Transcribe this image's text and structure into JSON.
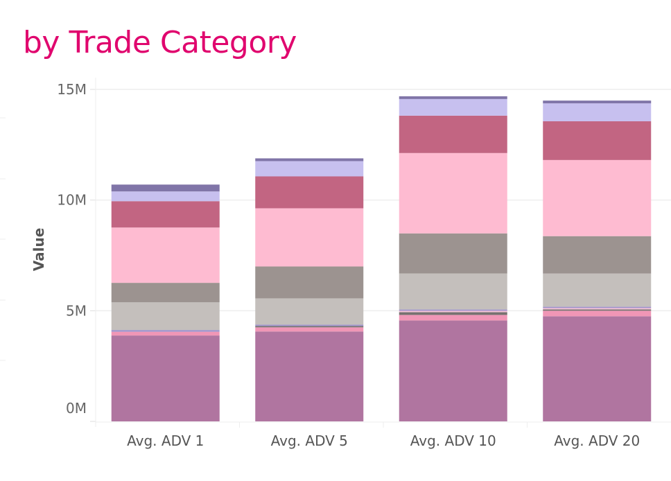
{
  "title": "by Trade Category",
  "chart_data": {
    "type": "bar",
    "stacked": true,
    "title": "by Trade Category",
    "xlabel": "",
    "ylabel": "Value",
    "ylim": [
      0,
      15000000
    ],
    "yticks": [
      {
        "value": 0,
        "label": "0M"
      },
      {
        "value": 5000000,
        "label": "5M"
      },
      {
        "value": 10000000,
        "label": "10M"
      },
      {
        "value": 15000000,
        "label": "15M"
      }
    ],
    "grid": true,
    "categories": [
      "Avg. ADV 1",
      "Avg. ADV 5",
      "Avg. ADV 10",
      "Avg. ADV 20"
    ],
    "series": [
      {
        "color": "#b075a0",
        "values": [
          3880000,
          4060000,
          4560000,
          4750000
        ]
      },
      {
        "color": "#f096b6",
        "values": [
          170000,
          190000,
          250000,
          250000
        ]
      },
      {
        "color": "#767270",
        "values": [
          0,
          60000,
          125000,
          60000
        ]
      },
      {
        "color": "#f6c3d6",
        "values": [
          0,
          0,
          60000,
          60000
        ]
      },
      {
        "color": "#a095cc",
        "values": [
          80000,
          60000,
          60000,
          60000
        ]
      },
      {
        "color": "#c4bfbc",
        "values": [
          1250000,
          1190000,
          1630000,
          1500000
        ]
      },
      {
        "color": "#9c9390",
        "values": [
          880000,
          1440000,
          1810000,
          1690000
        ]
      },
      {
        "color": "#febbd1",
        "values": [
          2500000,
          2630000,
          3630000,
          3440000
        ]
      },
      {
        "color": "#c26582",
        "values": [
          1190000,
          1440000,
          1690000,
          1750000
        ]
      },
      {
        "color": "#c7c0ef",
        "values": [
          440000,
          690000,
          750000,
          810000
        ]
      },
      {
        "color": "#8075a8",
        "values": [
          310000,
          125000,
          125000,
          125000
        ]
      }
    ]
  }
}
